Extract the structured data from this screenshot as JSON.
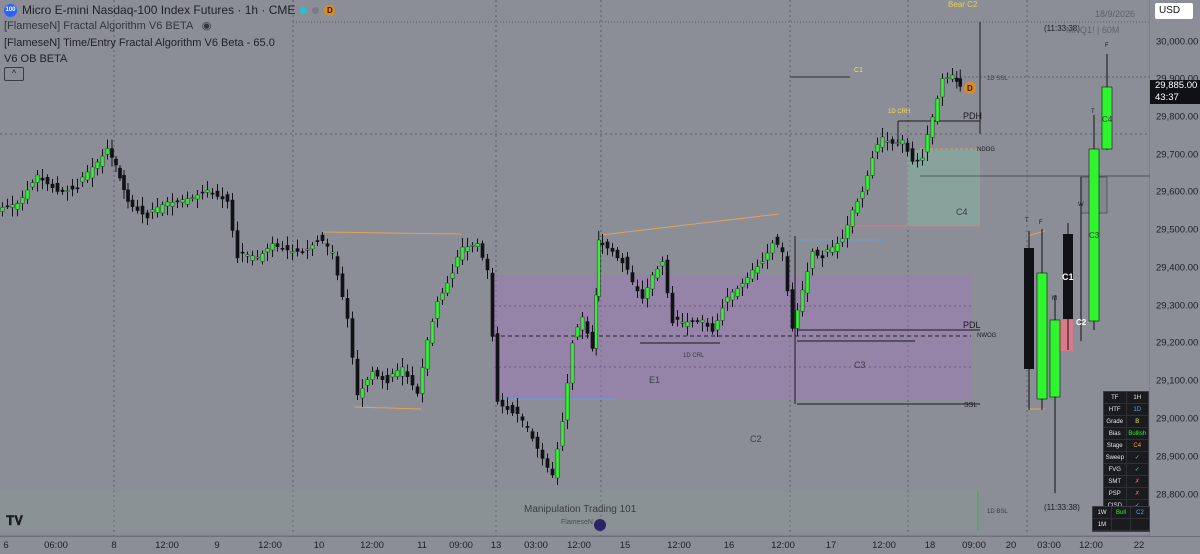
{
  "header": {
    "logo_text": "100",
    "symbol_title": "Micro E-mini Nasdaq-100 Index Futures · 1h · CME",
    "delayed_badge": "D",
    "indicator_1": "[FlameseN] Fractal Algorithm V6 BETA",
    "indicator_2": "[FlameseN] Time/Entry Fractal Algorithm V6 Beta - 65.0",
    "indicator_3": "V6 OB BETA",
    "collapse_glyph": "^"
  },
  "top_right": {
    "currency": "USD",
    "date": "18/9/2026",
    "symbol_tf": "MNQ1! | 60M",
    "bear_label": "Bear C2",
    "countdown_top": "(11:33:38)",
    "countdown_bottom": "(11:33:38)"
  },
  "price_axis": {
    "ticks": [
      "30,000.00",
      "29,900.00",
      "29,800.00",
      "29,700.00",
      "29,600.00",
      "29,500.00",
      "29,400.00",
      "29,300.00",
      "29,200.00",
      "29,100.00",
      "29,000.00",
      "28,900.00",
      "28,800.00"
    ],
    "last_price": "29,885.00",
    "last_countdown": "43:37"
  },
  "time_axis": {
    "ticks": [
      "6",
      "06:00",
      "8",
      "12:00",
      "9",
      "12:00",
      "10",
      "12:00",
      "11",
      "09:00",
      "13",
      "03:00",
      "12:00",
      "15",
      "12:00",
      "16",
      "12:00",
      "17",
      "12:00",
      "18",
      "09:00",
      "20",
      "03:00",
      "12:00",
      "22"
    ]
  },
  "chart_labels": {
    "pdh": "PDH",
    "pdl": "PDL",
    "ssl": "SSL",
    "ndog": "NDOG",
    "nwog": "NWOG",
    "one_d_crh": "1D CRH",
    "one_d_crl": "1D CRL",
    "one_d_ssl": "1D SSL",
    "one_d_bsl": "1D BSL",
    "c1": "C1",
    "c2": "C2",
    "c3": "C3",
    "c4": "C4",
    "e1": "E1",
    "d_marker": "D",
    "right_c1": "C1",
    "right_c2": "C2",
    "right_c3": "C3",
    "right_c4": "C4",
    "t_label": "T",
    "f_label": "F",
    "m_label": "M",
    "w_label": "W"
  },
  "status_panel": {
    "rows": [
      {
        "k": "TF",
        "v": "1H"
      },
      {
        "k": "HTF",
        "v": "1D"
      },
      {
        "k": "Grade",
        "v": "B"
      },
      {
        "k": "Bias",
        "v": "Bullish"
      },
      {
        "k": "Stage",
        "v": "C4"
      },
      {
        "k": "Sweep",
        "v": "✓"
      },
      {
        "k": "FVG",
        "v": "✓"
      },
      {
        "k": "SMT",
        "v": "✗"
      },
      {
        "k": "PSP",
        "v": "✗"
      },
      {
        "k": "CISD",
        "v": "✓"
      }
    ]
  },
  "status_panel2": {
    "rows": [
      {
        "a": "1W",
        "b": "Bull",
        "c": "C2"
      },
      {
        "a": "1M",
        "b": "",
        "c": ""
      }
    ]
  },
  "footer": {
    "manipulation": "Manipulation Trading 101",
    "brand": "FlameseN",
    "tv_logo": "TV"
  },
  "colors": {
    "background": "#8b8e96",
    "bull": "#2ef52e",
    "bear": "#111216",
    "purple_zone": "#a07ab8",
    "green_zone": "#7fa89a",
    "red_zone": "#d97a88",
    "orange_line": "#e0a45a",
    "blue_line": "#5aa6e6"
  }
}
